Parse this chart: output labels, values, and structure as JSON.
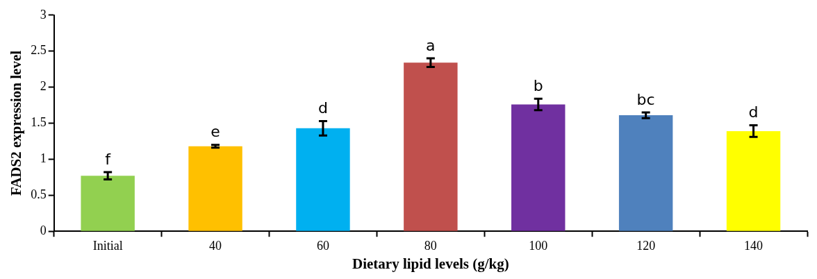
{
  "chart_data": {
    "type": "bar",
    "xlabel": "Dietary lipid levels (g/kg)",
    "ylabel": "FADS2 expression level",
    "categories": [
      "Initial",
      "40",
      "60",
      "80",
      "100",
      "120",
      "140"
    ],
    "values": [
      0.77,
      1.18,
      1.43,
      2.34,
      1.76,
      1.61,
      1.39
    ],
    "errors": [
      0.05,
      0.02,
      0.1,
      0.06,
      0.08,
      0.04,
      0.08
    ],
    "colors": [
      "#92d050",
      "#ffc000",
      "#00b0f0",
      "#c0504d",
      "#7030a0",
      "#4f81bd",
      "#ffff00"
    ],
    "ylim": [
      0,
      3
    ],
    "yticks": [
      0,
      0.5,
      1,
      1.5,
      2,
      2.5,
      3
    ],
    "grid": false,
    "legend": false,
    "annotations": [
      {
        "text": "f",
        "x": "Initial",
        "y": 0.82
      },
      {
        "text": "e",
        "x": "40",
        "y": 1.2
      },
      {
        "text": "d",
        "x": "60",
        "y": 1.53
      },
      {
        "text": "a",
        "x": "80",
        "y": 2.4
      },
      {
        "text": "b",
        "x": "100",
        "y": 1.84
      },
      {
        "text": "bc",
        "x": "120",
        "y": 1.65
      },
      {
        "text": "d",
        "x": "140",
        "y": 1.47
      }
    ]
  }
}
